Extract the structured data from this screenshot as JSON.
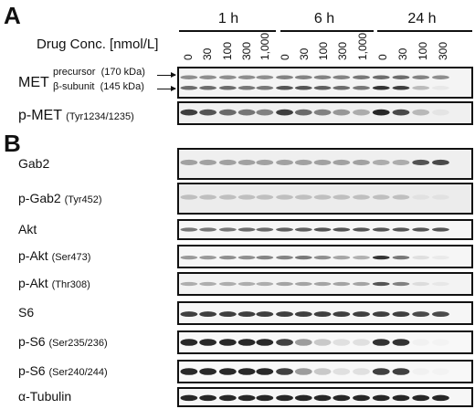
{
  "panels": {
    "a": "A",
    "b": "B"
  },
  "timepoints": [
    "1 h",
    "6 h",
    "24 h"
  ],
  "drug_conc_title": "Drug Conc. [nmol/L]",
  "concentrations": [
    "0",
    "30",
    "100",
    "300",
    "1,000"
  ],
  "lanes_per_timepoint": [
    5,
    5,
    4
  ],
  "met": {
    "label": "MET",
    "precursor_label": "precursor",
    "precursor_kda": "(170 kDa)",
    "beta_label": "β-subunit",
    "beta_kda": "(145 kDa)"
  },
  "pmet": {
    "label": "p-MET",
    "site": "(Tyr1234/1235)"
  },
  "rows_b": [
    {
      "label": "Gab2",
      "site": ""
    },
    {
      "label": "p-Gab2",
      "site": "(Tyr452)"
    },
    {
      "label": "Akt",
      "site": ""
    },
    {
      "label": "p-Akt",
      "site": "(Ser473)"
    },
    {
      "label": "p-Akt",
      "site": "(Thr308)"
    },
    {
      "label": "S6",
      "site": ""
    },
    {
      "label": "p-S6",
      "site": "(Ser235/236)"
    },
    {
      "label": "p-S6",
      "site": "(Ser240/244)"
    },
    {
      "label": "α-Tubulin",
      "site": ""
    }
  ]
}
